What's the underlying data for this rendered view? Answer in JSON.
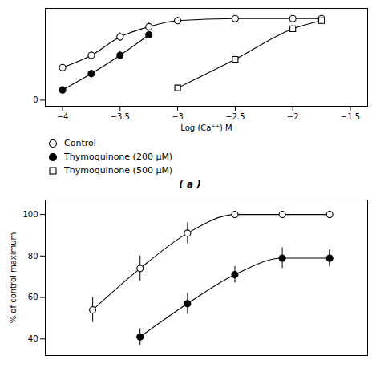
{
  "chart_data": [
    {
      "type": "scatter",
      "xlabel": "Log (Ca⁺⁺) M",
      "xlim": [
        -4.15,
        -1.35
      ],
      "xticks": [
        {
          "value": -4,
          "label": "−4"
        },
        {
          "value": -3.5,
          "label": "−3.5"
        },
        {
          "value": -3,
          "label": "−3"
        },
        {
          "value": -2.5,
          "label": "−2.5"
        },
        {
          "value": -2,
          "label": "−2"
        },
        {
          "value": -1.5,
          "label": "−1.5"
        }
      ],
      "ylim": [
        -0.3,
        4.5
      ],
      "yticks": [
        0
      ],
      "legend": "bottom",
      "annotations": [
        "( a )"
      ],
      "series": [
        {
          "name": "Control",
          "color": "black",
          "marker": "open_circle",
          "line_style": "solid",
          "x": [
            -4.0,
            -3.75,
            -3.5,
            -3.25,
            -3.0,
            -2.5,
            -2.0,
            -1.75
          ],
          "values": [
            1.6,
            2.2,
            3.1,
            3.6,
            3.9,
            4.0,
            4.0,
            4.0
          ],
          "yerr": [
            0.15,
            0.18,
            0.2,
            0.18,
            0.15,
            0.12,
            0.12,
            0.12
          ]
        },
        {
          "name": "Thymoquinone (200 μM)",
          "color": "black",
          "marker": "filled_circle",
          "line_style": "solid",
          "x": [
            -4.0,
            -3.75,
            -3.5,
            -3.25
          ],
          "values": [
            0.5,
            1.3,
            2.2,
            3.2
          ],
          "yerr": [
            0.12,
            0.15,
            0.2,
            0.18
          ]
        },
        {
          "name": "Thymoquinone (500 μM)",
          "color": "black",
          "marker": "open_square",
          "line_style": "solid",
          "x": [
            -3.0,
            -2.5,
            -2.0,
            -1.75
          ],
          "values": [
            0.6,
            2.0,
            3.5,
            3.9
          ],
          "yerr": [
            0.12,
            0.15,
            0.18,
            0.15
          ]
        }
      ]
    },
    {
      "type": "scatter",
      "ylabel": "% of control maximum",
      "xlim": [
        -3.25,
        -1.55
      ],
      "ylim": [
        32,
        107
      ],
      "yticks": [
        40,
        60,
        80,
        100
      ],
      "tick_labels": "y",
      "series": [
        {
          "name": "Control",
          "color": "black",
          "marker": "open_circle",
          "line_style": "solid",
          "x": [
            -3.0,
            -2.75,
            -2.5,
            -2.25,
            -2.0,
            -1.75
          ],
          "values": [
            54,
            74,
            91,
            100,
            100,
            100
          ],
          "yerr": [
            6,
            6,
            5,
            0,
            0,
            0
          ]
        },
        {
          "name": "Thymoquinone (200 μM)",
          "color": "black",
          "marker": "filled_circle",
          "line_style": "solid",
          "x": [
            -2.75,
            -2.5,
            -2.25,
            -2.0,
            -1.75
          ],
          "values": [
            41,
            57,
            71,
            79,
            79
          ],
          "yerr": [
            4,
            5,
            4,
            5,
            4
          ]
        }
      ]
    }
  ]
}
